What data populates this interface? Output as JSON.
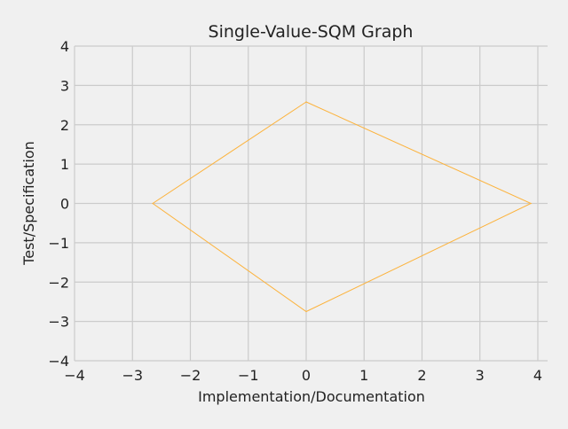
{
  "chart_data": {
    "type": "line",
    "title": "Single-Value-SQM Graph",
    "xlabel": "Implementation/Documentation",
    "ylabel": "Test/Specification",
    "xlim": [
      -4,
      4
    ],
    "ylim": [
      -4,
      4
    ],
    "xticks": [
      -4,
      -3,
      -2,
      -1,
      0,
      1,
      2,
      3,
      4
    ],
    "yticks": [
      -4,
      -3,
      -2,
      -1,
      0,
      1,
      2,
      3,
      4
    ],
    "xtick_labels": [
      "−4",
      "−3",
      "−2",
      "−1",
      "0",
      "1",
      "2",
      "3",
      "4"
    ],
    "ytick_labels": [
      "−4",
      "−3",
      "−2",
      "−1",
      "0",
      "1",
      "2",
      "3",
      "4"
    ],
    "grid": true,
    "series": [
      {
        "color": "#fcb33d",
        "x": [
          0,
          3.88,
          0,
          -2.65,
          0
        ],
        "y": [
          2.58,
          0,
          -2.75,
          0,
          2.58
        ]
      }
    ]
  },
  "colors": {
    "background": "#f0f0f0",
    "grid": "#cbcbcb",
    "text": "#222222"
  }
}
